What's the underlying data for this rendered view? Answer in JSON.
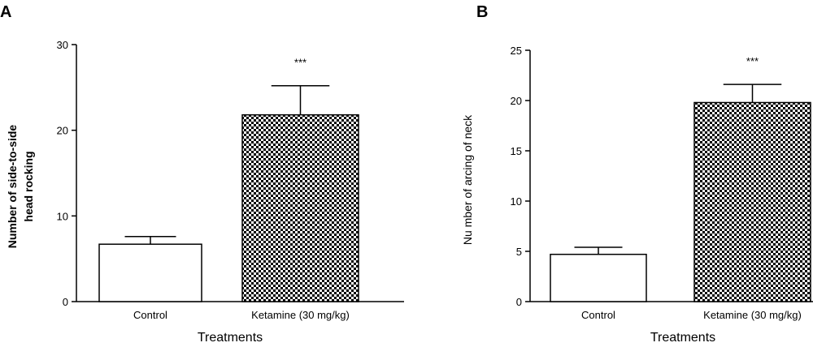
{
  "chart_data": [
    {
      "panel": "A",
      "type": "bar",
      "categories": [
        "Control",
        "Ketamine (30 mg/kg)"
      ],
      "values": [
        6.7,
        21.8
      ],
      "errors": [
        0.9,
        3.4
      ],
      "fills": [
        "#ffffff",
        "checker"
      ],
      "annotations": [
        "",
        "***"
      ],
      "xlabel": "Treatments",
      "ylabel_lines": [
        "Number of side-to-side",
        "head rocking"
      ],
      "ylim": [
        0,
        30
      ],
      "yticks": [
        0,
        10,
        20,
        30
      ],
      "grid": false
    },
    {
      "panel": "B",
      "type": "bar",
      "categories": [
        "Control",
        "Ketamine (30 mg/kg)"
      ],
      "values": [
        4.7,
        19.8
      ],
      "errors": [
        0.7,
        1.8
      ],
      "fills": [
        "#ffffff",
        "checker"
      ],
      "annotations": [
        "",
        "***"
      ],
      "xlabel": "Treatments",
      "ylabel_lines": [
        "Nu mber of arcing of neck"
      ],
      "ylim": [
        0,
        25
      ],
      "yticks": [
        0,
        5,
        10,
        15,
        20,
        25
      ],
      "grid": false
    }
  ]
}
